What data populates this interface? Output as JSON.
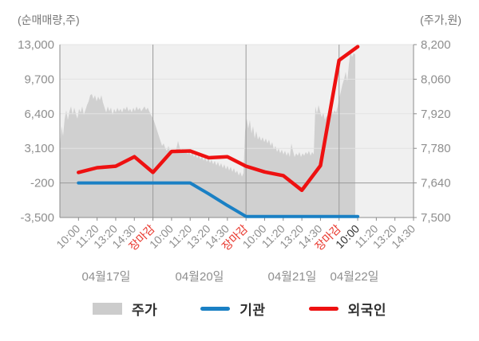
{
  "chart_data": {
    "type": "area",
    "title": "",
    "left_axis": {
      "title": "(순매매량,주)",
      "tick_labels": [
        "13,000",
        "9,700",
        "6,400",
        "3,100",
        "-200",
        "-3,500"
      ],
      "tick_values": [
        13000,
        9700,
        6400,
        3100,
        -200,
        -3500
      ],
      "range": [
        -3500,
        13000
      ]
    },
    "right_axis": {
      "title": "(주가,원)",
      "tick_labels": [
        "8,200",
        "8,060",
        "7,920",
        "7,780",
        "7,640",
        "7,500"
      ],
      "tick_values": [
        8200,
        8060,
        7920,
        7780,
        7640,
        7500
      ],
      "range": [
        7500,
        8200
      ]
    },
    "x_axis": {
      "tick_labels": [
        "10:00",
        "11:20",
        "13:20",
        "14:30",
        "장마감",
        "10:00",
        "11:20",
        "13:20",
        "14:30",
        "장마감",
        "10:00",
        "11:20",
        "13:20",
        "14:30",
        "장마감",
        "10:00",
        "11:20",
        "13:20",
        "14:30"
      ],
      "tick_kinds": [
        "time",
        "time",
        "time",
        "time",
        "close",
        "time",
        "time",
        "time",
        "time",
        "close",
        "time",
        "time",
        "time",
        "time",
        "close",
        "current",
        "time",
        "time",
        "time"
      ],
      "date_labels": [
        "04월17일",
        "04월20일",
        "04월21일",
        "04월22일"
      ]
    },
    "grid": {
      "h_line_color": "#e3e3e3",
      "ref_line_value": -200,
      "ref_line_color": "#999999",
      "day_separator_color": "#9a9a9a",
      "axis_line_color": "#8c8c8c"
    },
    "colors": {
      "plot_bg": "#f0f0f0",
      "tick_text": "#8e8e8e",
      "close_label": "#e8352b",
      "current_label": "#333333",
      "axis_title_text": "#767676"
    },
    "series": [
      {
        "name": "주가",
        "type": "area",
        "axis": "right",
        "color": "#d0d0d0",
        "values": [
          7780,
          7870,
          7830,
          7900,
          7935,
          7895,
          7930,
          7950,
          7915,
          7945,
          7920,
          7900,
          7940,
          7925,
          7950,
          7915,
          7935,
          7955,
          7970,
          7995,
          8000,
          7980,
          7995,
          7970,
          7990,
          7975,
          7995,
          7965,
          7945,
          7925,
          7950,
          7930,
          7945,
          7915,
          7940,
          7925,
          7945,
          7930,
          7940,
          7925,
          7945,
          7935,
          7950,
          7930,
          7940,
          7925,
          7945,
          7930,
          7950,
          7935,
          7945,
          7930,
          7940,
          7950,
          7935,
          7945,
          7930,
          7915,
          7905,
          7890,
          7870,
          7850,
          7830,
          7810,
          7790,
          7800,
          7780,
          7770,
          7790,
          7770,
          7755,
          7775,
          7760,
          7780,
          7810,
          7785,
          7765,
          7780,
          7760,
          7775,
          7755,
          7770,
          7750,
          7765,
          7745,
          7760,
          7740,
          7755,
          7735,
          7750,
          7730,
          7745,
          7725,
          7740,
          7720,
          7735,
          7715,
          7730,
          7710,
          7725,
          7705,
          7720,
          7700,
          7715,
          7695,
          7710,
          7690,
          7705,
          7685,
          7700,
          7680,
          7690,
          7670,
          7685,
          7665,
          7680,
          7850,
          7900,
          7860,
          7895,
          7840,
          7870,
          7820,
          7850,
          7815,
          7830,
          7810,
          7825,
          7805,
          7820,
          7800,
          7815,
          7790,
          7805,
          7775,
          7790,
          7765,
          7780,
          7760,
          7775,
          7755,
          7770,
          7750,
          7765,
          7745,
          7800,
          7770,
          7745,
          7760,
          7750,
          7765,
          7745,
          7760,
          7750,
          7765,
          7755,
          7770,
          7750,
          7765,
          7755,
          7950,
          7920,
          7955,
          7930,
          7905,
          7925,
          7895,
          7915,
          7890,
          7920,
          7940,
          7920,
          7935,
          7925,
          7950,
          7985,
          8010,
          8040,
          8060,
          8090,
          8050,
          8120,
          8170,
          8150,
          8165,
          8160
        ]
      },
      {
        "name": "기관",
        "type": "line",
        "axis": "left",
        "color": "#1a80c4",
        "values": [
          -200,
          -200,
          -200,
          -200,
          -200,
          -200,
          -200,
          -1250,
          -2350,
          -3400,
          -3400,
          -3400,
          -3400,
          -3400,
          -3400,
          -3400
        ]
      },
      {
        "name": "외국인",
        "type": "line",
        "axis": "left",
        "color": "#ee1111",
        "values": [
          800,
          1250,
          1400,
          2300,
          800,
          2800,
          2850,
          2200,
          2300,
          1400,
          850,
          500,
          -900,
          1450,
          11500,
          12800
        ]
      }
    ]
  },
  "legend": {
    "items": [
      {
        "label": "주가",
        "swatch": "area",
        "color": "#cccccc"
      },
      {
        "label": "기관",
        "swatch": "line",
        "color": "#1a80c4"
      },
      {
        "label": "외국인",
        "swatch": "line",
        "color": "#ee1111"
      }
    ]
  }
}
